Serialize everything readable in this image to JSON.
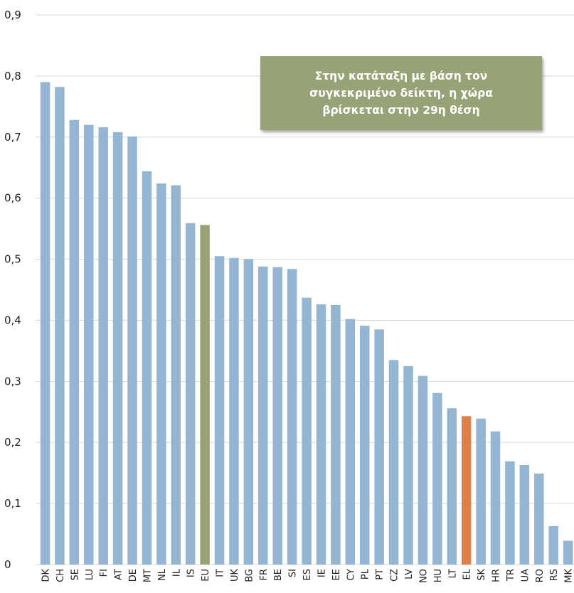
{
  "chart_data": {
    "type": "bar",
    "title": "",
    "xlabel": "",
    "ylabel": "",
    "ylim": [
      0,
      0.9
    ],
    "yticks": [
      "0",
      "0,1",
      "0,2",
      "0,3",
      "0,4",
      "0,5",
      "0,6",
      "0,7",
      "0,8",
      "0,9"
    ],
    "grid": true,
    "categories": [
      "DK",
      "CH",
      "SE",
      "LU",
      "FI",
      "AT",
      "DE",
      "MT",
      "NL",
      "IL",
      "IS",
      "EU",
      "IT",
      "UK",
      "BG",
      "FR",
      "BE",
      "SI",
      "ES",
      "IE",
      "EE",
      "CY",
      "PL",
      "PT",
      "CZ",
      "LV",
      "NO",
      "HU",
      "LT",
      "EL",
      "SK",
      "HR",
      "TR",
      "UA",
      "RO",
      "RS",
      "MK"
    ],
    "values": [
      0.79,
      0.782,
      0.728,
      0.72,
      0.716,
      0.708,
      0.701,
      0.644,
      0.624,
      0.621,
      0.559,
      0.556,
      0.505,
      0.502,
      0.5,
      0.488,
      0.487,
      0.484,
      0.437,
      0.426,
      0.425,
      0.402,
      0.391,
      0.385,
      0.335,
      0.325,
      0.309,
      0.281,
      0.256,
      0.243,
      0.239,
      0.218,
      0.169,
      0.163,
      0.149,
      0.063,
      0.039
    ],
    "colors": {
      "default": "#94b6d2",
      "EU": "#98a277",
      "EL": "#dd8047",
      "grid": "#d9d9d9"
    },
    "annotation": "Στην κατάταξη με βάση τον συγκεκριμένο δείκτη, η χώρα βρίσκεται στην 29η θέση"
  }
}
